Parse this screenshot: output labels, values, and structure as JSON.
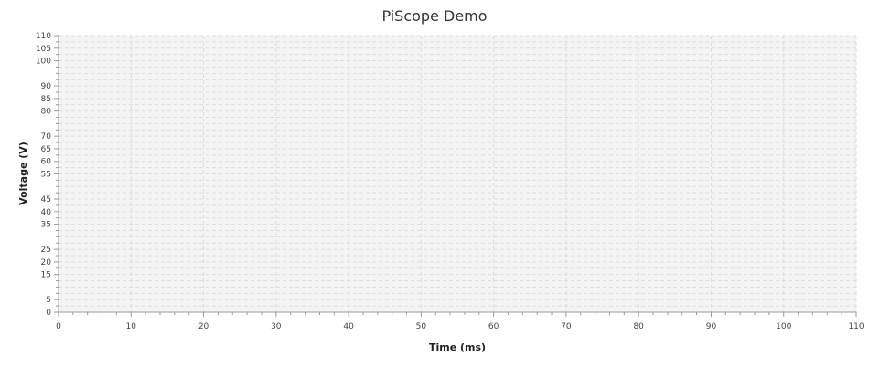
{
  "chart_data": {
    "type": "line",
    "title": "PiScope Demo",
    "xlabel": "Time (ms)",
    "ylabel": "Voltage (V)",
    "xlim": [
      0,
      110
    ],
    "ylim": [
      0,
      110
    ],
    "x_ticks": [
      0,
      10,
      20,
      30,
      40,
      50,
      60,
      70,
      80,
      90,
      100,
      110
    ],
    "x_minor_step": 2,
    "y_ticks": [
      0,
      5,
      15,
      20,
      25,
      35,
      40,
      45,
      55,
      60,
      65,
      70,
      80,
      85,
      90,
      100,
      105,
      110
    ],
    "y_minor_step": 2.5,
    "grid": true,
    "legend": false,
    "series": [],
    "colors": {
      "plot_background": "#f4f4f4",
      "grid": "#dcdcdc",
      "axis": "#9a9a9a"
    }
  }
}
